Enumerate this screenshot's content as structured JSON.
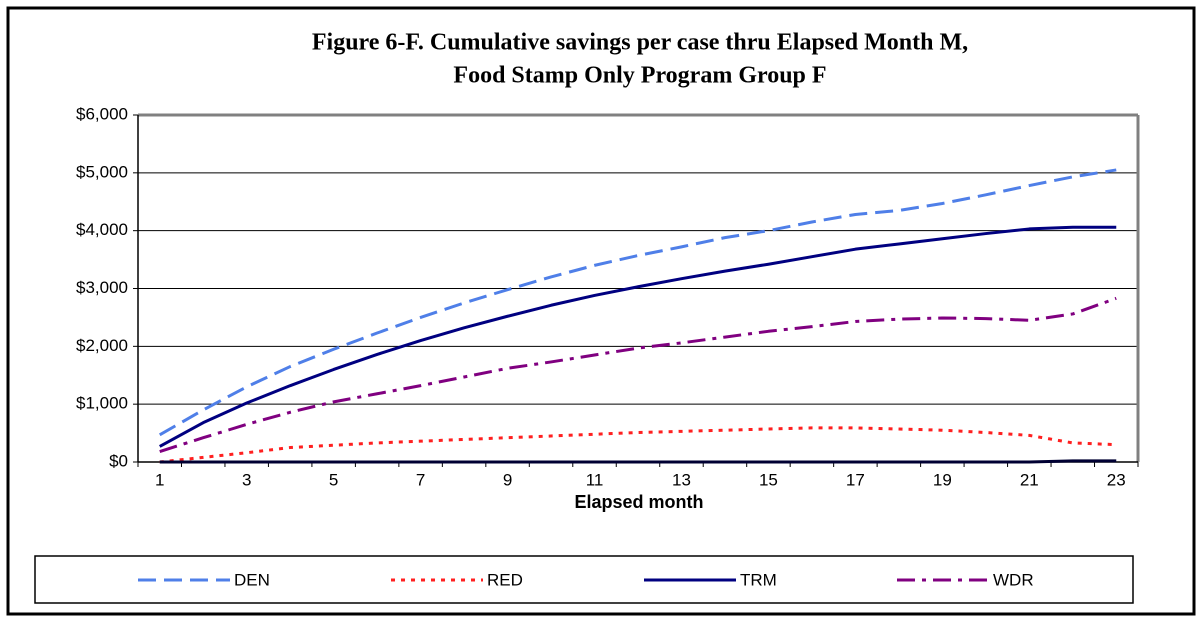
{
  "chart_data": {
    "type": "line",
    "title": [
      "Figure 6-F.  Cumulative savings per case thru Elapsed Month M,",
      "Food Stamp Only Program Group F"
    ],
    "x_label": "Elapsed month",
    "categories": [
      1,
      null,
      3,
      null,
      5,
      null,
      7,
      null,
      9,
      null,
      11,
      null,
      13,
      null,
      15,
      null,
      17,
      null,
      19,
      null,
      21,
      null,
      23
    ],
    "ylim": [
      0,
      6000
    ],
    "yticks": [
      {
        "value": 0,
        "label": "$0"
      },
      {
        "value": 1000,
        "label": "$1,000"
      },
      {
        "value": 2000,
        "label": "$2,000"
      },
      {
        "value": 3000,
        "label": "$3,000"
      },
      {
        "value": 4000,
        "label": "$4,000"
      },
      {
        "value": 5000,
        "label": "$5,000"
      },
      {
        "value": 6000,
        "label": "$6,000"
      }
    ],
    "grid": true,
    "legend": "bottom",
    "series": [
      {
        "name": "DEN",
        "color": "#4f7fe8",
        "style": "dashed",
        "values": [
          470,
          900,
          1300,
          1650,
          1950,
          2230,
          2500,
          2750,
          2980,
          3200,
          3400,
          3570,
          3720,
          3880,
          4000,
          4150,
          4280,
          4350,
          4470,
          4620,
          4780,
          4930,
          5050
        ]
      },
      {
        "name": "RED",
        "color": "#ff2020",
        "style": "dotted",
        "values": [
          0,
          80,
          160,
          250,
          290,
          330,
          360,
          390,
          420,
          450,
          480,
          510,
          530,
          550,
          570,
          590,
          590,
          570,
          550,
          510,
          460,
          330,
          300
        ]
      },
      {
        "name": "TRM",
        "color": "#000080",
        "style": "solid",
        "values": [
          270,
          680,
          1020,
          1320,
          1600,
          1860,
          2100,
          2320,
          2520,
          2710,
          2880,
          3030,
          3170,
          3300,
          3420,
          3550,
          3680,
          3770,
          3860,
          3950,
          4030,
          4060,
          4060
        ]
      },
      {
        "name": "WDR",
        "color": "#800080",
        "style": "dashdot",
        "values": [
          180,
          420,
          650,
          860,
          1040,
          1180,
          1320,
          1470,
          1620,
          1730,
          1850,
          1970,
          2060,
          2160,
          2260,
          2340,
          2430,
          2470,
          2490,
          2480,
          2450,
          2560,
          2830
        ]
      },
      {
        "color": "#000033",
        "style": "solid",
        "values": [
          0,
          0,
          0,
          0,
          0,
          0,
          0,
          0,
          0,
          0,
          0,
          0,
          0,
          0,
          0,
          0,
          0,
          0,
          0,
          0,
          0,
          20,
          20
        ]
      }
    ]
  }
}
